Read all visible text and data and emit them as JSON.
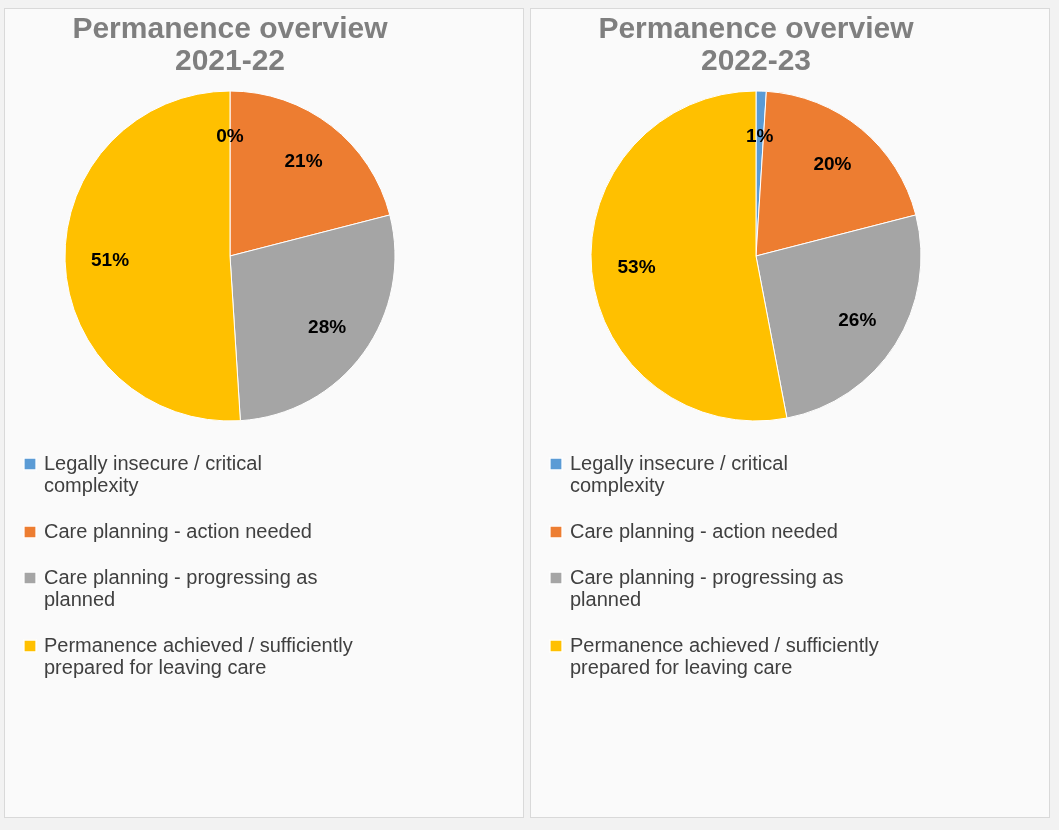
{
  "chart_data": [
    {
      "type": "pie",
      "title": "Permanence overview 2021-22",
      "categories": [
        "Legally insecure / critical complexity",
        "Care planning - action needed",
        "Care planning - progressing as planned",
        "Permanence achieved / sufficiently prepared for leaving care"
      ],
      "values": [
        0,
        21,
        28,
        51
      ],
      "value_labels": [
        "0%",
        "21%",
        "28%",
        "51%"
      ],
      "colors": [
        "#5b9bd5",
        "#ed7d31",
        "#a5a5a5",
        "#ffc000"
      ],
      "legend": "bottom"
    },
    {
      "type": "pie",
      "title": "Permanence overview 2022-23",
      "categories": [
        "Legally insecure / critical complexity",
        "Care planning - action needed",
        "Care planning - progressing as planned",
        "Permanence achieved / sufficiently prepared for leaving care"
      ],
      "values": [
        1,
        20,
        26,
        53
      ],
      "value_labels": [
        "1%",
        "20%",
        "26%",
        "53%"
      ],
      "colors": [
        "#5b9bd5",
        "#ed7d31",
        "#a5a5a5",
        "#ffc000"
      ],
      "legend": "bottom"
    }
  ]
}
